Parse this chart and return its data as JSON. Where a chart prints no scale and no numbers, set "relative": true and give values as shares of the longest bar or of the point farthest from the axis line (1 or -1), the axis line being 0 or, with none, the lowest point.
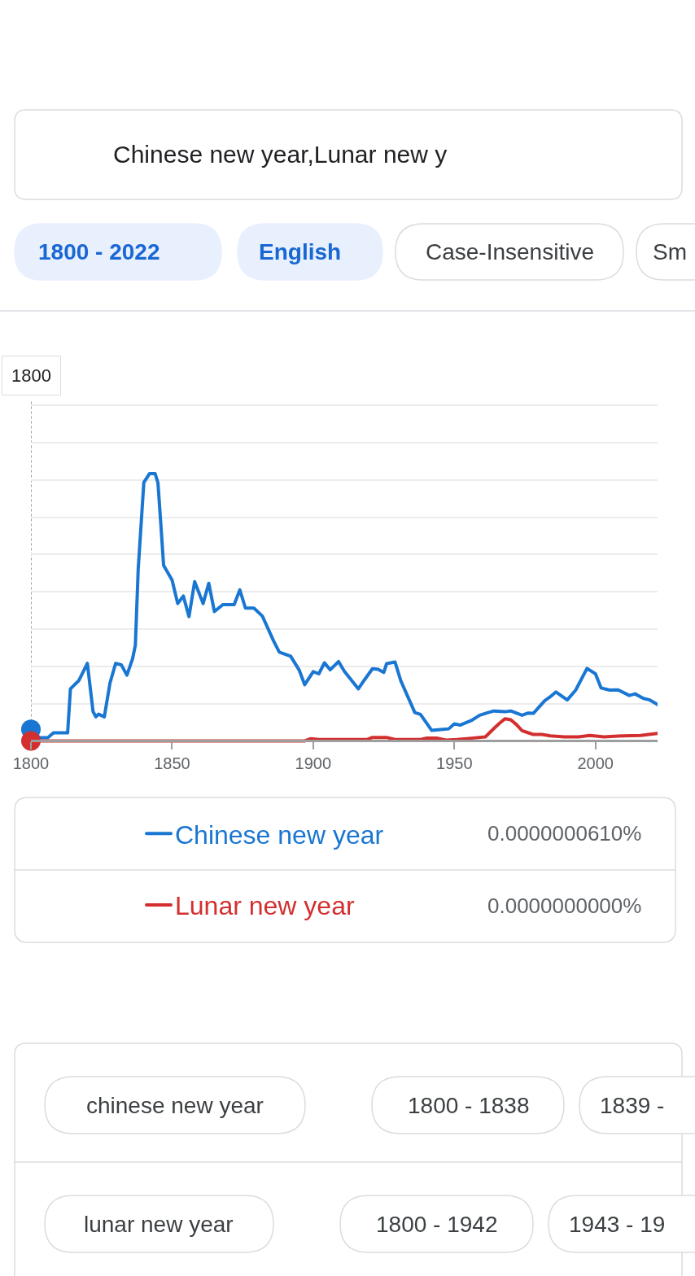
{
  "chart_data": {
    "type": "line",
    "relative": true,
    "xlim": [
      1800,
      2022
    ],
    "xticks": [
      1800,
      1850,
      1900,
      1950,
      2000
    ],
    "tick_labels": "x",
    "grid": "y",
    "legend": "bottom",
    "series": [
      {
        "name": "Chinese new year",
        "color": "#1976d2",
        "x": [
          1800,
          1803,
          1806,
          1808,
          1813,
          1814,
          1817,
          1820,
          1822,
          1823,
          1824,
          1826,
          1828,
          1830,
          1832,
          1834,
          1836,
          1837,
          1838,
          1840,
          1842,
          1844,
          1845,
          1846,
          1847,
          1850,
          1852,
          1854,
          1856,
          1858,
          1861,
          1863,
          1865,
          1868,
          1872,
          1874,
          1876,
          1879,
          1882,
          1886,
          1888,
          1892,
          1895,
          1897,
          1900,
          1902,
          1904,
          1906,
          1909,
          1911,
          1916,
          1918,
          1921,
          1923,
          1925,
          1926,
          1929,
          1931,
          1936,
          1938,
          1942,
          1946,
          1948,
          1950,
          1952,
          1956,
          1959,
          1962,
          1964,
          1968,
          1970,
          1974,
          1976,
          1978,
          1982,
          1984,
          1986,
          1990,
          1993,
          1997,
          2000,
          2002,
          2005,
          2008,
          2012,
          2014,
          2017,
          2019,
          2022
        ],
        "values": [
          0.043,
          0.012,
          0.012,
          0.03,
          0.03,
          0.195,
          0.226,
          0.29,
          0.11,
          0.09,
          0.1,
          0.09,
          0.216,
          0.29,
          0.285,
          0.246,
          0.307,
          0.358,
          0.641,
          0.967,
          1.0,
          1.0,
          0.966,
          0.815,
          0.657,
          0.602,
          0.514,
          0.542,
          0.465,
          0.596,
          0.514,
          0.59,
          0.484,
          0.51,
          0.51,
          0.565,
          0.497,
          0.497,
          0.467,
          0.373,
          0.332,
          0.317,
          0.266,
          0.21,
          0.259,
          0.251,
          0.292,
          0.266,
          0.297,
          0.261,
          0.195,
          0.226,
          0.27,
          0.268,
          0.256,
          0.289,
          0.295,
          0.226,
          0.106,
          0.099,
          0.039,
          0.043,
          0.045,
          0.064,
          0.059,
          0.076,
          0.096,
          0.106,
          0.112,
          0.109,
          0.112,
          0.096,
          0.104,
          0.103,
          0.15,
          0.165,
          0.183,
          0.153,
          0.19,
          0.271,
          0.251,
          0.198,
          0.19,
          0.191,
          0.17,
          0.176,
          0.159,
          0.154,
          0.136
        ]
      },
      {
        "name": "Lunar new year",
        "color": "#d32f2f",
        "x": [
          1800,
          1897,
          1899,
          1902,
          1919,
          1921,
          1926,
          1929,
          1938,
          1940,
          1944,
          1947,
          1951,
          1956,
          1961,
          1964,
          1966,
          1968,
          1970,
          1972,
          1974,
          1976,
          1978,
          1981,
          1984,
          1989,
          1994,
          1998,
          2003,
          2010,
          2016,
          2022
        ],
        "values": [
          0.0,
          0.0,
          0.008,
          0.005,
          0.005,
          0.013,
          0.013,
          0.005,
          0.005,
          0.01,
          0.01,
          0.003,
          0.005,
          0.01,
          0.015,
          0.046,
          0.066,
          0.083,
          0.079,
          0.061,
          0.038,
          0.031,
          0.024,
          0.024,
          0.019,
          0.015,
          0.015,
          0.02,
          0.015,
          0.019,
          0.02,
          0.028
        ]
      },
      {
        "type": "scatter",
        "color": "#1976d2",
        "x": [
          1800
        ],
        "values": [
          0.043
        ]
      },
      {
        "type": "scatter",
        "color": "#d32f2f",
        "x": [
          1800
        ],
        "values": [
          0.0
        ]
      }
    ],
    "ref_lines": [
      {
        "axis": "x",
        "value": 1800,
        "label": "1800",
        "color": "#9e9e9e",
        "line_style": "dotted"
      }
    ],
    "annotations": [
      "Chinese new year,Lunar new y",
      "1800 - 2022",
      "English",
      "Case-Insensitive",
      "Sm",
      "0.0000000610%",
      "0.0000000000%",
      "chinese new year",
      "1800 - 1838",
      "1839 -",
      "lunar new year",
      "1800 - 1942",
      "1943 - 19"
    ]
  }
}
